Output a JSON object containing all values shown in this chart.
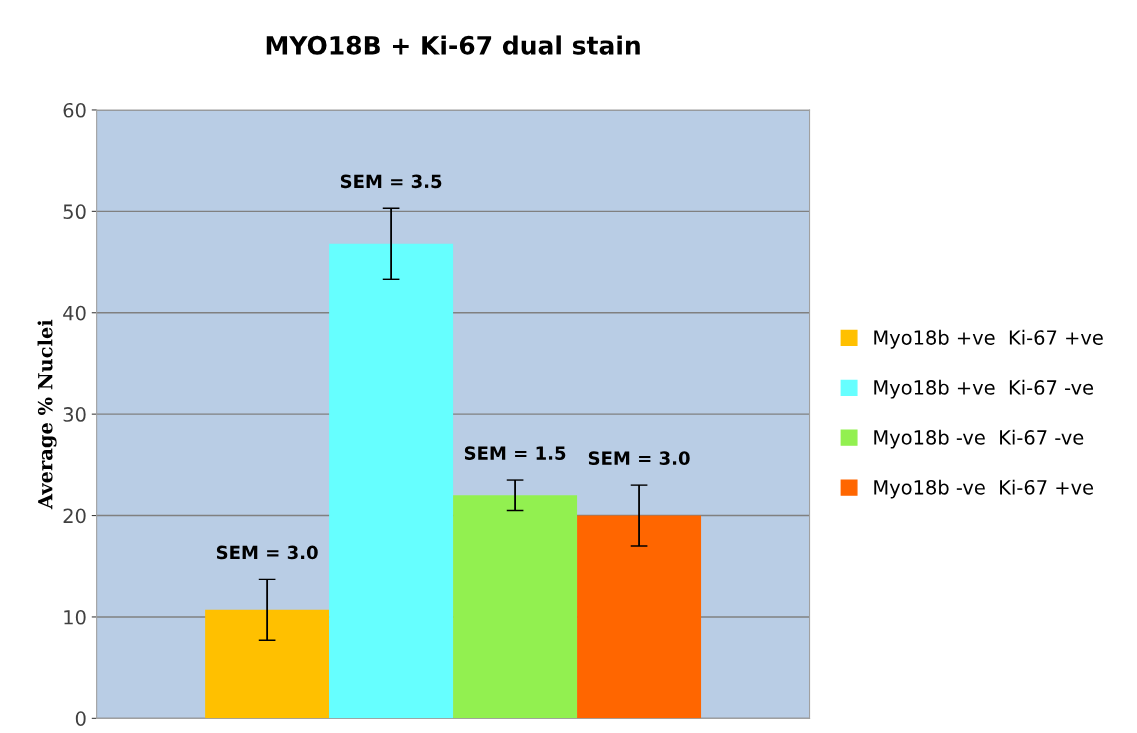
{
  "chart_data": {
    "type": "bar",
    "title": "MYO18B + Ki-67 dual stain",
    "ylabel": "Average % Nuclei",
    "categories": [
      null
    ],
    "series": [
      {
        "name": "Myo18b +ve  Ki-67 +ve",
        "color": "#ffc000",
        "values": [
          10.7
        ],
        "errors": [
          3.0
        ]
      },
      {
        "name": "Myo18b +ve  Ki-67 -ve",
        "color": "#66ffff",
        "values": [
          46.8
        ],
        "errors": [
          3.5
        ]
      },
      {
        "name": "Myo18b -ve  Ki-67 -ve",
        "color": "#92f050",
        "values": [
          22
        ],
        "errors": [
          1.5
        ]
      },
      {
        "name": "Myo18b -ve  Ki-67 +ve",
        "color": "#ff6600",
        "values": [
          20
        ],
        "errors": [
          3.0
        ]
      }
    ],
    "annotations": [
      {
        "text": "SEM = 3.0",
        "y": 13.7
      },
      {
        "text": "SEM = 3.5",
        "y": 50.3
      },
      {
        "text": "SEM = 1.5",
        "y": 23.5
      },
      {
        "text": "SEM = 3.0",
        "y": 23
      }
    ],
    "ylim": [
      0,
      60
    ],
    "yticks": [
      0,
      10,
      20,
      30,
      40,
      50,
      60
    ],
    "grid": "y",
    "legend": "right",
    "tick_labels": "y"
  }
}
